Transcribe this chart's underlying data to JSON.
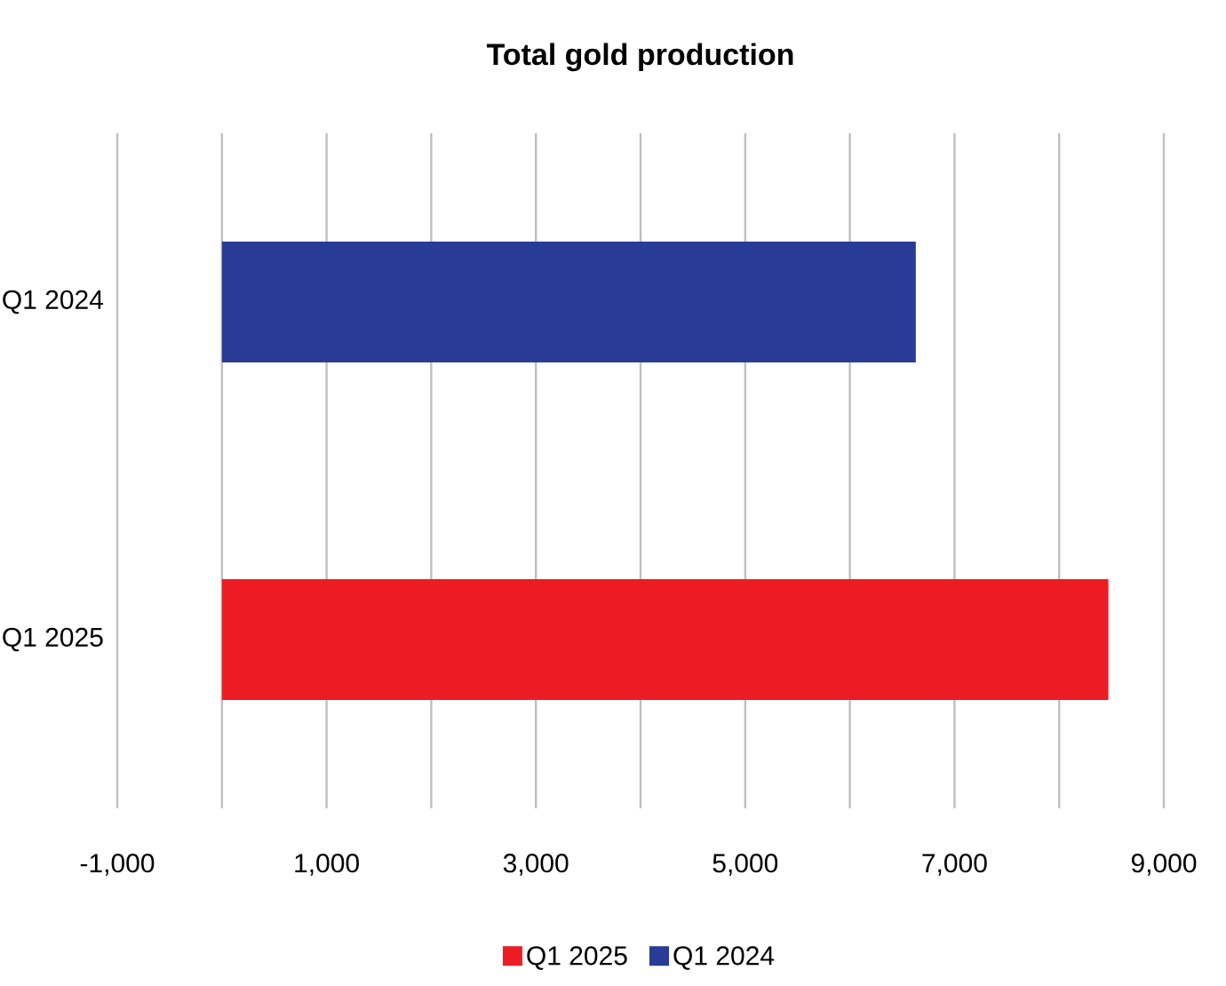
{
  "chart_data": {
    "type": "bar",
    "orientation": "horizontal",
    "title": "Total gold production",
    "categories": [
      "Q1 2024",
      "Q1 2025"
    ],
    "series": [
      {
        "name": "Q1 2025",
        "color": "#ed1c24",
        "values": [
          null,
          8470
        ]
      },
      {
        "name": "Q1 2024",
        "color": "#283b96",
        "values": [
          6630,
          null
        ]
      }
    ],
    "xlim": [
      -1000,
      9000
    ],
    "xticks": [
      {
        "value": -1000,
        "label": "-1,000"
      },
      {
        "value": 0,
        "label": null
      },
      {
        "value": 1000,
        "label": "1,000"
      },
      {
        "value": 2000,
        "label": null
      },
      {
        "value": 3000,
        "label": "3,000"
      },
      {
        "value": 4000,
        "label": null
      },
      {
        "value": 5000,
        "label": "5,000"
      },
      {
        "value": 6000,
        "label": null
      },
      {
        "value": 7000,
        "label": "7,000"
      },
      {
        "value": 8000,
        "label": null
      },
      {
        "value": 9000,
        "label": "9,000"
      }
    ],
    "grid": "x",
    "legend": "bottom"
  }
}
